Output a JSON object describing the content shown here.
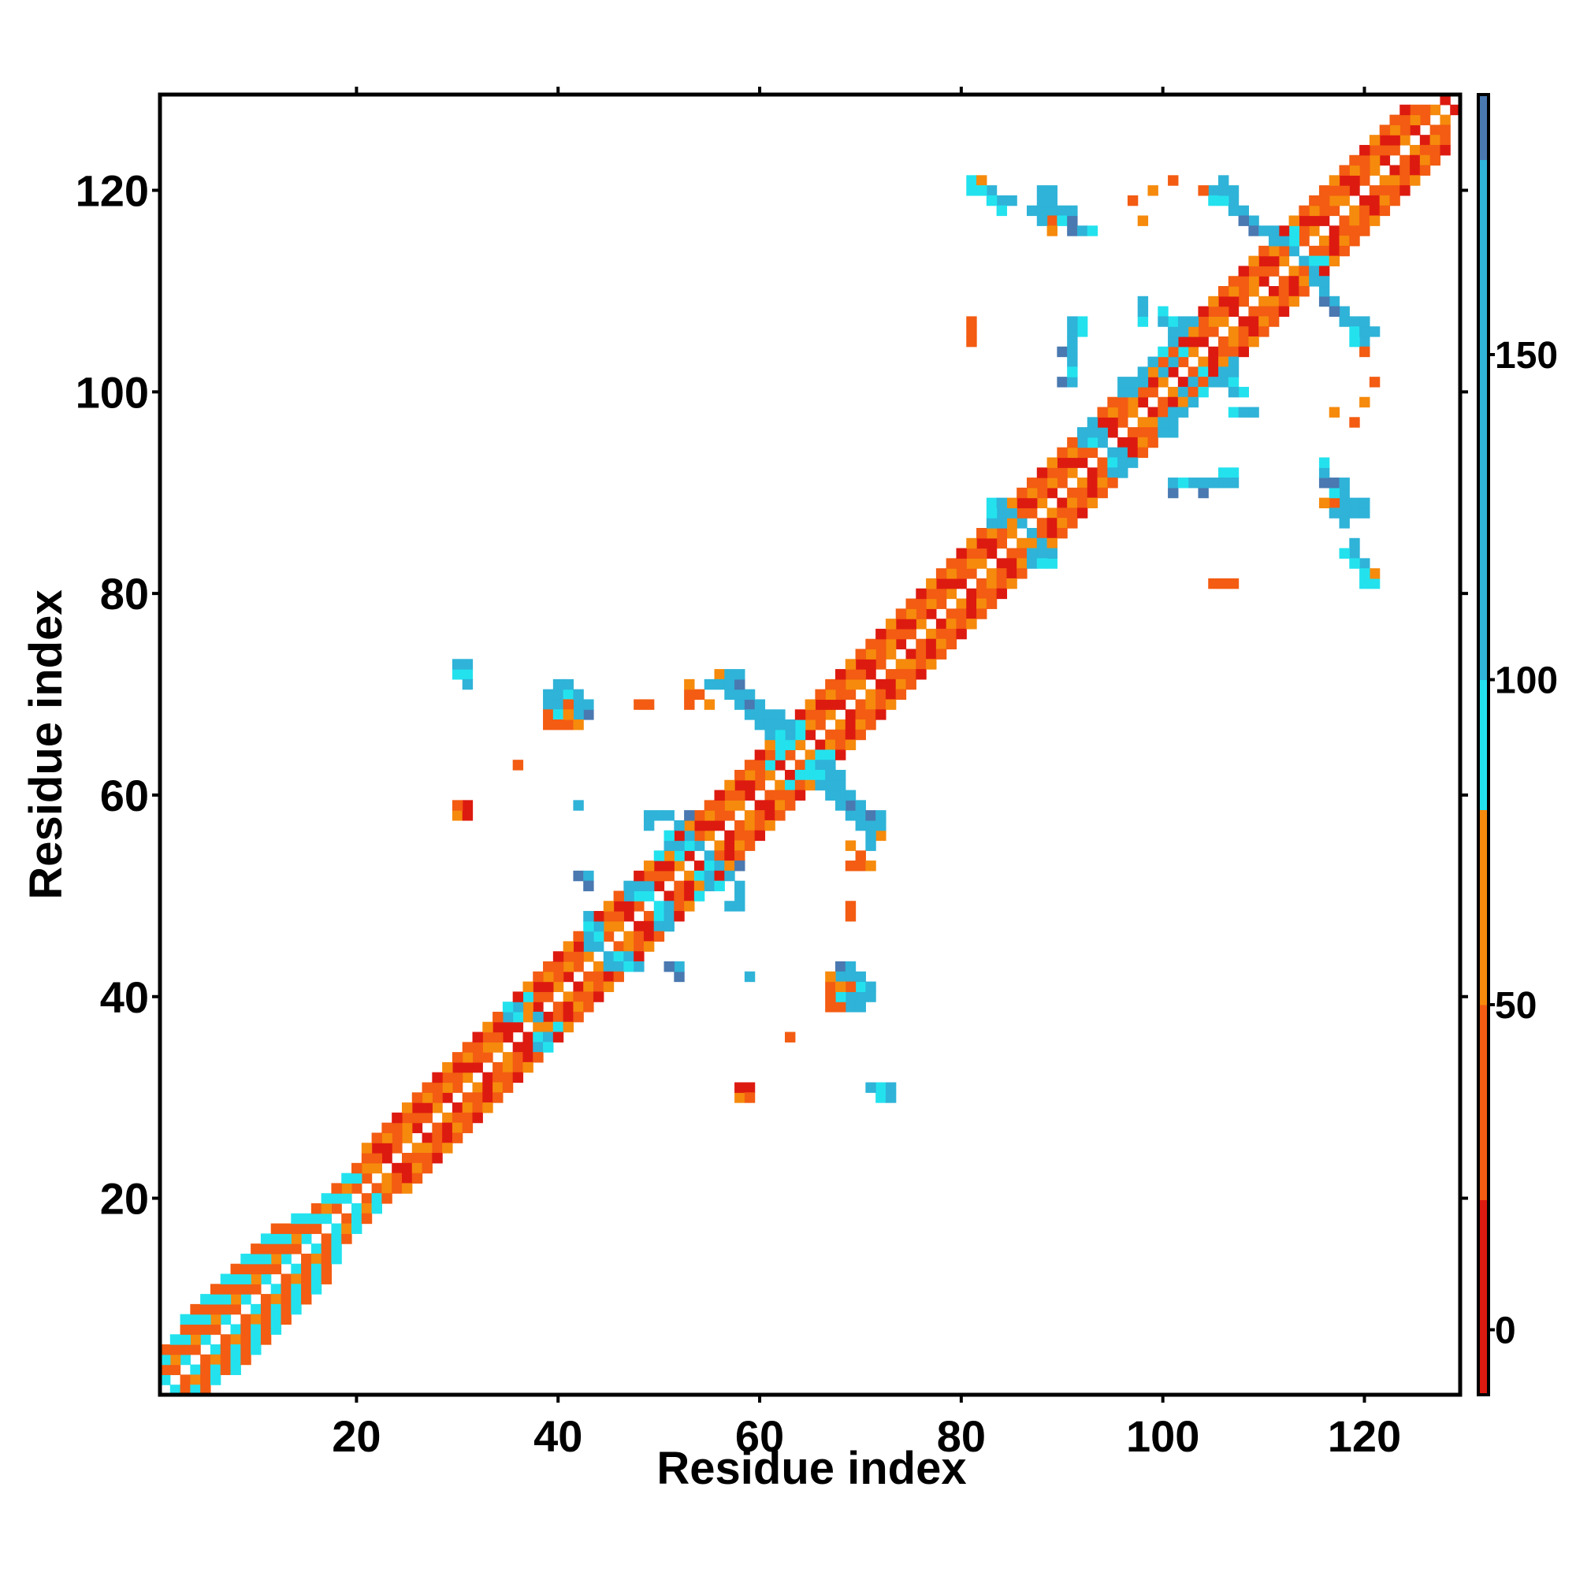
{
  "chart_data": {
    "type": "heatmap",
    "title": "",
    "xlabel": "Residue index",
    "ylabel": "Residue index",
    "xlim": [
      1,
      129
    ],
    "ylim": [
      1,
      129
    ],
    "xticks": [
      20,
      40,
      60,
      80,
      100,
      120
    ],
    "yticks": [
      20,
      40,
      60,
      80,
      100,
      120
    ],
    "colorbar": {
      "range": [
        -10,
        190
      ],
      "ticks": [
        0,
        50,
        100,
        150
      ],
      "bands": [
        {
          "from": -10,
          "to": 20,
          "color": "#dd1a10"
        },
        {
          "from": 20,
          "to": 50,
          "color": "#f35c12"
        },
        {
          "from": 50,
          "to": 80,
          "color": "#f68a0c"
        },
        {
          "from": 80,
          "to": 100,
          "color": "#23e2ee"
        },
        {
          "from": 100,
          "to": 180,
          "color": "#2fb3d8"
        },
        {
          "from": 180,
          "to": 190,
          "color": "#4a78b0"
        }
      ]
    },
    "colors": {
      "red": "#dd1a10",
      "orange-red": "#f35c12",
      "orange": "#f68a0c",
      "cyan": "#23e2ee",
      "sky": "#2fb3d8",
      "steel": "#4a78b0"
    },
    "diagonal_bands": [
      {
        "i_start": 1,
        "i_end": 16,
        "offset": 1,
        "pattern": [
          "cyan",
          "orange-red"
        ]
      },
      {
        "i_start": 1,
        "i_end": 16,
        "offset": 2,
        "pattern": [
          "orange-red",
          "orange"
        ]
      },
      {
        "i_start": 1,
        "i_end": 16,
        "offset": 3,
        "pattern": [
          "cyan",
          "orange-red"
        ]
      },
      {
        "i_start": 1,
        "i_end": 14,
        "offset": 4,
        "pattern": [
          "orange-red",
          "cyan"
        ]
      },
      {
        "i_start": 3,
        "i_end": 12,
        "offset": 5,
        "pattern": [
          "cyan",
          "orange-red"
        ]
      },
      {
        "i_start": 16,
        "i_end": 21,
        "offset": 1,
        "pattern": [
          "orange-red",
          "cyan"
        ]
      },
      {
        "i_start": 16,
        "i_end": 21,
        "offset": 2,
        "pattern": [
          "cyan",
          "orange"
        ]
      },
      {
        "i_start": 16,
        "i_end": 20,
        "offset": 3,
        "pattern": [
          "orange-red",
          "cyan"
        ]
      },
      {
        "i_start": 21,
        "i_end": 128,
        "offset": 1,
        "pattern": [
          "orange-red",
          "orange",
          "red"
        ]
      },
      {
        "i_start": 21,
        "i_end": 126,
        "offset": 2,
        "pattern": [
          "orange",
          "orange-red",
          "red",
          "orange-red"
        ]
      },
      {
        "i_start": 21,
        "i_end": 125,
        "offset": 3,
        "pattern": [
          "orange-red",
          "red",
          "orange",
          "orange-red"
        ]
      },
      {
        "i_start": 21,
        "i_end": 124,
        "offset": 4,
        "pattern": [
          "orange",
          "orange-red",
          "orange-red",
          "red"
        ]
      }
    ],
    "cells": [
      [
        35,
        38,
        "sky"
      ],
      [
        36,
        38,
        "cyan"
      ],
      [
        35,
        39,
        "sky"
      ],
      [
        37,
        40,
        "cyan"
      ],
      [
        36,
        37,
        "red"
      ],
      [
        37,
        36,
        "red"
      ],
      [
        38,
        38,
        "sky"
      ],
      [
        39,
        35,
        "cyan"
      ],
      [
        39,
        36,
        "sky"
      ],
      [
        43,
        47,
        "cyan"
      ],
      [
        44,
        47,
        "sky"
      ],
      [
        43,
        48,
        "sky"
      ],
      [
        44,
        46,
        "cyan"
      ],
      [
        45,
        43,
        "sky"
      ],
      [
        46,
        43,
        "sky"
      ],
      [
        45,
        44,
        "sky"
      ],
      [
        46,
        44,
        "cyan"
      ],
      [
        47,
        51,
        "sky"
      ],
      [
        48,
        51,
        "cyan"
      ],
      [
        47,
        50,
        "sky"
      ],
      [
        49,
        50,
        "cyan"
      ],
      [
        50,
        47,
        "sky"
      ],
      [
        50,
        48,
        "cyan"
      ],
      [
        51,
        49,
        "sky"
      ],
      [
        51,
        48,
        "sky"
      ],
      [
        49,
        57,
        "steel"
      ],
      [
        50,
        58,
        "sky"
      ],
      [
        51,
        56,
        "cyan"
      ],
      [
        52,
        57,
        "sky"
      ],
      [
        51,
        55,
        "sky"
      ],
      [
        53,
        58,
        "steel"
      ],
      [
        53,
        56,
        "sky"
      ],
      [
        54,
        55,
        "sky"
      ],
      [
        52,
        54,
        "cyan"
      ],
      [
        55,
        52,
        "sky"
      ],
      [
        56,
        53,
        "sky"
      ],
      [
        57,
        52,
        "sky"
      ],
      [
        58,
        51,
        "sky"
      ],
      [
        56,
        51,
        "cyan"
      ],
      [
        57,
        49,
        "sky"
      ],
      [
        58,
        49,
        "sky"
      ],
      [
        54,
        50,
        "cyan"
      ],
      [
        55,
        53,
        "cyan"
      ],
      [
        42,
        52,
        "steel"
      ],
      [
        43,
        52,
        "sky"
      ],
      [
        42,
        59,
        "sky"
      ],
      [
        51,
        43,
        "steel"
      ],
      [
        59,
        42,
        "sky"
      ],
      [
        55,
        71,
        "sky"
      ],
      [
        56,
        72,
        "sky"
      ],
      [
        57,
        71,
        "sky"
      ],
      [
        56,
        71,
        "sky"
      ],
      [
        57,
        70,
        "sky"
      ],
      [
        58,
        70,
        "steel"
      ],
      [
        58,
        69,
        "sky"
      ],
      [
        59,
        69,
        "sky"
      ],
      [
        59,
        68,
        "sky"
      ],
      [
        60,
        68,
        "sky"
      ],
      [
        60,
        67,
        "sky"
      ],
      [
        61,
        67,
        "sky"
      ],
      [
        61,
        66,
        "sky"
      ],
      [
        62,
        66,
        "sky"
      ],
      [
        62,
        67,
        "cyan"
      ],
      [
        63,
        66,
        "sky"
      ],
      [
        63,
        65,
        "cyan"
      ],
      [
        64,
        66,
        "cyan"
      ],
      [
        61,
        63,
        "cyan"
      ],
      [
        62,
        64,
        "cyan"
      ],
      [
        40,
        70,
        "sky"
      ],
      [
        41,
        70,
        "sky"
      ],
      [
        42,
        69,
        "sky"
      ],
      [
        40,
        69,
        "sky"
      ],
      [
        41,
        69,
        "sky"
      ],
      [
        43,
        68,
        "sky"
      ],
      [
        42,
        68,
        "sky"
      ],
      [
        39,
        69,
        "sky"
      ],
      [
        39,
        70,
        "sky"
      ],
      [
        39,
        68,
        "sky"
      ],
      [
        30,
        72,
        "cyan"
      ],
      [
        31,
        72,
        "cyan"
      ],
      [
        31,
        71,
        "sky"
      ],
      [
        66,
        63,
        "sky"
      ],
      [
        67,
        63,
        "sky"
      ],
      [
        66,
        62,
        "cyan"
      ],
      [
        67,
        62,
        "sky"
      ],
      [
        68,
        61,
        "sky"
      ],
      [
        68,
        62,
        "sky"
      ],
      [
        69,
        60,
        "sky"
      ],
      [
        69,
        59,
        "steel"
      ],
      [
        70,
        59,
        "sky"
      ],
      [
        70,
        58,
        "sky"
      ],
      [
        71,
        58,
        "steel"
      ],
      [
        71,
        57,
        "sky"
      ],
      [
        72,
        58,
        "sky"
      ],
      [
        72,
        57,
        "sky"
      ],
      [
        68,
        60,
        "sky"
      ],
      [
        67,
        64,
        "cyan"
      ],
      [
        66,
        64,
        "cyan"
      ],
      [
        65,
        62,
        "cyan"
      ],
      [
        69,
        58,
        "sky"
      ],
      [
        70,
        57,
        "sky"
      ],
      [
        68,
        43,
        "steel"
      ],
      [
        69,
        43,
        "sky"
      ],
      [
        69,
        42,
        "sky"
      ],
      [
        70,
        42,
        "sky"
      ],
      [
        70,
        41,
        "cyan"
      ],
      [
        71,
        41,
        "sky"
      ],
      [
        68,
        40,
        "cyan"
      ],
      [
        69,
        40,
        "sky"
      ],
      [
        70,
        40,
        "sky"
      ],
      [
        71,
        40,
        "sky"
      ],
      [
        72,
        31,
        "cyan"
      ],
      [
        73,
        31,
        "sky"
      ],
      [
        73,
        30,
        "sky"
      ],
      [
        83,
        89,
        "cyan"
      ],
      [
        84,
        89,
        "sky"
      ],
      [
        85,
        88,
        "sky"
      ],
      [
        83,
        87,
        "sky"
      ],
      [
        86,
        87,
        "cyan"
      ],
      [
        87,
        86,
        "sky"
      ],
      [
        87,
        84,
        "sky"
      ],
      [
        88,
        84,
        "sky"
      ],
      [
        88,
        83,
        "cyan"
      ],
      [
        92,
        96,
        "sky"
      ],
      [
        93,
        97,
        "sky"
      ],
      [
        94,
        96,
        "sky"
      ],
      [
        92,
        95,
        "sky"
      ],
      [
        95,
        93,
        "sky"
      ],
      [
        96,
        93,
        "sky"
      ],
      [
        96,
        92,
        "sky"
      ],
      [
        95,
        94,
        "sky"
      ],
      [
        93,
        95,
        "cyan"
      ],
      [
        96,
        100,
        "sky"
      ],
      [
        97,
        101,
        "sky"
      ],
      [
        98,
        102,
        "sky"
      ],
      [
        99,
        103,
        "steel"
      ],
      [
        100,
        104,
        "sky"
      ],
      [
        101,
        105,
        "sky"
      ],
      [
        102,
        106,
        "sky"
      ],
      [
        103,
        107,
        "sky"
      ],
      [
        97,
        100,
        "cyan"
      ],
      [
        98,
        101,
        "sky"
      ],
      [
        100,
        102,
        "sky"
      ],
      [
        101,
        103,
        "sky"
      ],
      [
        100,
        97,
        "sky"
      ],
      [
        101,
        96,
        "sky"
      ],
      [
        102,
        98,
        "sky"
      ],
      [
        103,
        99,
        "sky"
      ],
      [
        104,
        100,
        "cyan"
      ],
      [
        105,
        101,
        "sky"
      ],
      [
        106,
        101,
        "sky"
      ],
      [
        107,
        101,
        "sky"
      ],
      [
        108,
        100,
        "cyan"
      ],
      [
        104,
        102,
        "cyan"
      ],
      [
        107,
        98,
        "cyan"
      ],
      [
        108,
        98,
        "cyan"
      ],
      [
        109,
        98,
        "cyan"
      ],
      [
        98,
        109,
        "sky"
      ],
      [
        98,
        108,
        "sky"
      ],
      [
        100,
        107,
        "sky"
      ],
      [
        101,
        107,
        "cyan"
      ],
      [
        102,
        107,
        "sky"
      ],
      [
        90,
        104,
        "steel"
      ],
      [
        91,
        104,
        "sky"
      ],
      [
        91,
        105,
        "sky"
      ],
      [
        91,
        103,
        "sky"
      ],
      [
        90,
        101,
        "steel"
      ],
      [
        91,
        101,
        "sky"
      ],
      [
        101,
        90,
        "steel"
      ],
      [
        102,
        91,
        "cyan"
      ],
      [
        106,
        92,
        "cyan"
      ],
      [
        107,
        92,
        "cyan"
      ],
      [
        107,
        91,
        "sky"
      ],
      [
        106,
        91,
        "sky"
      ],
      [
        81,
        121,
        "cyan"
      ],
      [
        82,
        121,
        "cyan"
      ],
      [
        83,
        120,
        "sky"
      ],
      [
        84,
        119,
        "sky"
      ],
      [
        85,
        119,
        "sky"
      ],
      [
        81,
        120,
        "cyan"
      ],
      [
        87,
        118,
        "sky"
      ],
      [
        88,
        118,
        "sky"
      ],
      [
        89,
        118,
        "sky"
      ],
      [
        90,
        118,
        "sky"
      ],
      [
        89,
        117,
        "sky"
      ],
      [
        90,
        117,
        "steel"
      ],
      [
        91,
        116,
        "steel"
      ],
      [
        92,
        116,
        "sky"
      ],
      [
        93,
        116,
        "cyan"
      ],
      [
        89,
        116,
        "sky"
      ],
      [
        88,
        117,
        "sky"
      ],
      [
        105,
        120,
        "sky"
      ],
      [
        106,
        121,
        "sky"
      ],
      [
        107,
        120,
        "sky"
      ],
      [
        107,
        119,
        "sky"
      ],
      [
        106,
        119,
        "sky"
      ],
      [
        108,
        118,
        "sky"
      ],
      [
        109,
        117,
        "sky"
      ],
      [
        109,
        116,
        "steel"
      ],
      [
        110,
        116,
        "sky"
      ],
      [
        111,
        115,
        "sky"
      ],
      [
        112,
        115,
        "sky"
      ],
      [
        113,
        114,
        "sky"
      ],
      [
        113,
        115,
        "cyan"
      ],
      [
        105,
        119,
        "cyan"
      ],
      [
        115,
        112,
        "sky"
      ],
      [
        116,
        111,
        "sky"
      ],
      [
        116,
        110,
        "sky"
      ],
      [
        117,
        109,
        "sky"
      ],
      [
        117,
        108,
        "steel"
      ],
      [
        118,
        108,
        "sky"
      ],
      [
        119,
        107,
        "sky"
      ],
      [
        120,
        107,
        "sky"
      ],
      [
        120,
        106,
        "sky"
      ],
      [
        118,
        107,
        "sky"
      ],
      [
        119,
        106,
        "cyan"
      ],
      [
        121,
        106,
        "sky"
      ],
      [
        116,
        113,
        "cyan"
      ],
      [
        117,
        91,
        "steel"
      ],
      [
        118,
        90,
        "sky"
      ],
      [
        119,
        89,
        "sky"
      ],
      [
        119,
        88,
        "sky"
      ],
      [
        120,
        89,
        "sky"
      ],
      [
        120,
        88,
        "sky"
      ],
      [
        118,
        91,
        "sky"
      ],
      [
        117,
        90,
        "cyan"
      ],
      [
        118,
        84,
        "cyan"
      ],
      [
        119,
        83,
        "cyan"
      ],
      [
        120,
        82,
        "cyan"
      ],
      [
        119,
        84,
        "sky"
      ],
      [
        121,
        81,
        "cyan"
      ],
      [
        121,
        82,
        "orange"
      ],
      [
        81,
        106,
        "orange"
      ],
      [
        81,
        105,
        "orange-red"
      ],
      [
        98,
        117,
        "orange"
      ],
      [
        99,
        120,
        "orange"
      ],
      [
        116,
        120,
        "orange-red"
      ],
      [
        120,
        104,
        "orange-red"
      ],
      [
        121,
        101,
        "orange-red"
      ],
      [
        119,
        97,
        "orange-red"
      ],
      [
        106,
        81,
        "orange-red"
      ],
      [
        107,
        81,
        "orange-red"
      ],
      [
        116,
        89,
        "orange"
      ],
      [
        117,
        89,
        "orange-red"
      ],
      [
        49,
        69,
        "orange-red"
      ],
      [
        53,
        70,
        "orange-red"
      ],
      [
        54,
        70,
        "orange-red"
      ],
      [
        55,
        69,
        "orange"
      ],
      [
        40,
        67,
        "orange-red"
      ],
      [
        41,
        67,
        "orange-red"
      ],
      [
        42,
        67,
        "orange"
      ],
      [
        36,
        63,
        "orange"
      ],
      [
        30,
        58,
        "orange-red"
      ],
      [
        31,
        58,
        "red"
      ],
      [
        31,
        59,
        "orange-red"
      ],
      [
        69,
        53,
        "orange-red"
      ],
      [
        70,
        53,
        "orange-red"
      ],
      [
        71,
        53,
        "orange"
      ],
      [
        69,
        48,
        "orange-red"
      ],
      [
        72,
        56,
        "orange"
      ],
      [
        58,
        30,
        "orange"
      ],
      [
        59,
        30,
        "orange-red"
      ],
      [
        59,
        31,
        "red"
      ],
      [
        63,
        36,
        "orange-red"
      ],
      [
        67,
        39,
        "orange-red"
      ],
      [
        68,
        39,
        "orange-red"
      ],
      [
        68,
        41,
        "orange"
      ],
      [
        69,
        41,
        "orange-red"
      ]
    ]
  }
}
